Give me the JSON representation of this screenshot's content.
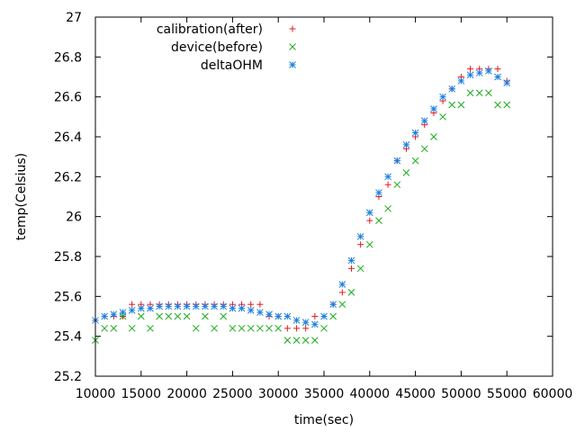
{
  "chart_data": {
    "type": "scatter",
    "xlabel": "time(sec)",
    "ylabel": "temp(Celsius)",
    "xlim": [
      10000,
      60000
    ],
    "ylim": [
      25.2,
      27
    ],
    "xticks": [
      10000,
      15000,
      20000,
      25000,
      30000,
      35000,
      40000,
      45000,
      50000,
      55000,
      60000
    ],
    "yticks": [
      25.2,
      25.4,
      25.6,
      25.8,
      26,
      26.2,
      26.4,
      26.6,
      26.8,
      27
    ],
    "ytick_labels": [
      "25.2",
      "25.4",
      "25.6",
      "25.8",
      "26",
      "26.2",
      "26.4",
      "26.6",
      "26.8",
      "27"
    ],
    "grid": false,
    "legend_position": "top-center",
    "series": [
      {
        "name": "calibration(after)",
        "marker": "plus",
        "color": "#e8191c",
        "points": [
          [
            10000,
            25.48
          ],
          [
            11000,
            25.5
          ],
          [
            12000,
            25.5
          ],
          [
            13000,
            25.5
          ],
          [
            14000,
            25.56
          ],
          [
            15000,
            25.56
          ],
          [
            16000,
            25.56
          ],
          [
            17000,
            25.56
          ],
          [
            18000,
            25.56
          ],
          [
            19000,
            25.56
          ],
          [
            20000,
            25.56
          ],
          [
            21000,
            25.56
          ],
          [
            22000,
            25.56
          ],
          [
            23000,
            25.56
          ],
          [
            24000,
            25.56
          ],
          [
            25000,
            25.56
          ],
          [
            26000,
            25.56
          ],
          [
            27000,
            25.56
          ],
          [
            28000,
            25.56
          ],
          [
            29000,
            25.5
          ],
          [
            30000,
            25.5
          ],
          [
            31000,
            25.44
          ],
          [
            32000,
            25.44
          ],
          [
            33000,
            25.44
          ],
          [
            34000,
            25.5
          ],
          [
            35000,
            25.5
          ],
          [
            36000,
            25.56
          ],
          [
            37000,
            25.62
          ],
          [
            38000,
            25.74
          ],
          [
            39000,
            25.86
          ],
          [
            40000,
            25.98
          ],
          [
            41000,
            26.1
          ],
          [
            42000,
            26.16
          ],
          [
            43000,
            26.28
          ],
          [
            44000,
            26.34
          ],
          [
            45000,
            26.4
          ],
          [
            46000,
            26.46
          ],
          [
            47000,
            26.52
          ],
          [
            48000,
            26.58
          ],
          [
            49000,
            26.64
          ],
          [
            50000,
            26.7
          ],
          [
            51000,
            26.74
          ],
          [
            52000,
            26.74
          ],
          [
            53000,
            26.74
          ],
          [
            54000,
            26.74
          ],
          [
            55000,
            26.68
          ]
        ]
      },
      {
        "name": "device(before)",
        "marker": "cross",
        "color": "#1aac1a",
        "points": [
          [
            10000,
            25.38
          ],
          [
            11000,
            25.44
          ],
          [
            12000,
            25.44
          ],
          [
            13000,
            25.5
          ],
          [
            14000,
            25.44
          ],
          [
            15000,
            25.5
          ],
          [
            16000,
            25.44
          ],
          [
            17000,
            25.5
          ],
          [
            18000,
            25.5
          ],
          [
            19000,
            25.5
          ],
          [
            20000,
            25.5
          ],
          [
            21000,
            25.44
          ],
          [
            22000,
            25.5
          ],
          [
            23000,
            25.44
          ],
          [
            24000,
            25.5
          ],
          [
            25000,
            25.44
          ],
          [
            26000,
            25.44
          ],
          [
            27000,
            25.44
          ],
          [
            28000,
            25.44
          ],
          [
            29000,
            25.44
          ],
          [
            30000,
            25.44
          ],
          [
            31000,
            25.38
          ],
          [
            32000,
            25.38
          ],
          [
            33000,
            25.38
          ],
          [
            34000,
            25.38
          ],
          [
            35000,
            25.44
          ],
          [
            36000,
            25.5
          ],
          [
            37000,
            25.56
          ],
          [
            38000,
            25.62
          ],
          [
            39000,
            25.74
          ],
          [
            40000,
            25.86
          ],
          [
            41000,
            25.98
          ],
          [
            42000,
            26.04
          ],
          [
            43000,
            26.16
          ],
          [
            44000,
            26.22
          ],
          [
            45000,
            26.28
          ],
          [
            46000,
            26.34
          ],
          [
            47000,
            26.4
          ],
          [
            48000,
            26.5
          ],
          [
            49000,
            26.56
          ],
          [
            50000,
            26.56
          ],
          [
            51000,
            26.62
          ],
          [
            52000,
            26.62
          ],
          [
            53000,
            26.62
          ],
          [
            54000,
            26.56
          ],
          [
            55000,
            26.56
          ]
        ]
      },
      {
        "name": "deltaOHM",
        "marker": "star",
        "color": "#1a7fe0",
        "points": [
          [
            10000,
            25.48
          ],
          [
            11000,
            25.5
          ],
          [
            12000,
            25.51
          ],
          [
            13000,
            25.52
          ],
          [
            14000,
            25.53
          ],
          [
            15000,
            25.54
          ],
          [
            16000,
            25.54
          ],
          [
            17000,
            25.55
          ],
          [
            18000,
            25.55
          ],
          [
            19000,
            25.55
          ],
          [
            20000,
            25.55
          ],
          [
            21000,
            25.55
          ],
          [
            22000,
            25.55
          ],
          [
            23000,
            25.55
          ],
          [
            24000,
            25.55
          ],
          [
            25000,
            25.54
          ],
          [
            26000,
            25.54
          ],
          [
            27000,
            25.53
          ],
          [
            28000,
            25.52
          ],
          [
            29000,
            25.51
          ],
          [
            30000,
            25.5
          ],
          [
            31000,
            25.5
          ],
          [
            32000,
            25.48
          ],
          [
            33000,
            25.47
          ],
          [
            34000,
            25.46
          ],
          [
            35000,
            25.5
          ],
          [
            36000,
            25.56
          ],
          [
            37000,
            25.66
          ],
          [
            38000,
            25.78
          ],
          [
            39000,
            25.9
          ],
          [
            40000,
            26.02
          ],
          [
            41000,
            26.12
          ],
          [
            42000,
            26.2
          ],
          [
            43000,
            26.28
          ],
          [
            44000,
            26.36
          ],
          [
            45000,
            26.42
          ],
          [
            46000,
            26.48
          ],
          [
            47000,
            26.54
          ],
          [
            48000,
            26.6
          ],
          [
            49000,
            26.64
          ],
          [
            50000,
            26.68
          ],
          [
            51000,
            26.71
          ],
          [
            52000,
            26.72
          ],
          [
            53000,
            26.73
          ],
          [
            54000,
            26.7
          ],
          [
            55000,
            26.67
          ]
        ]
      }
    ]
  }
}
